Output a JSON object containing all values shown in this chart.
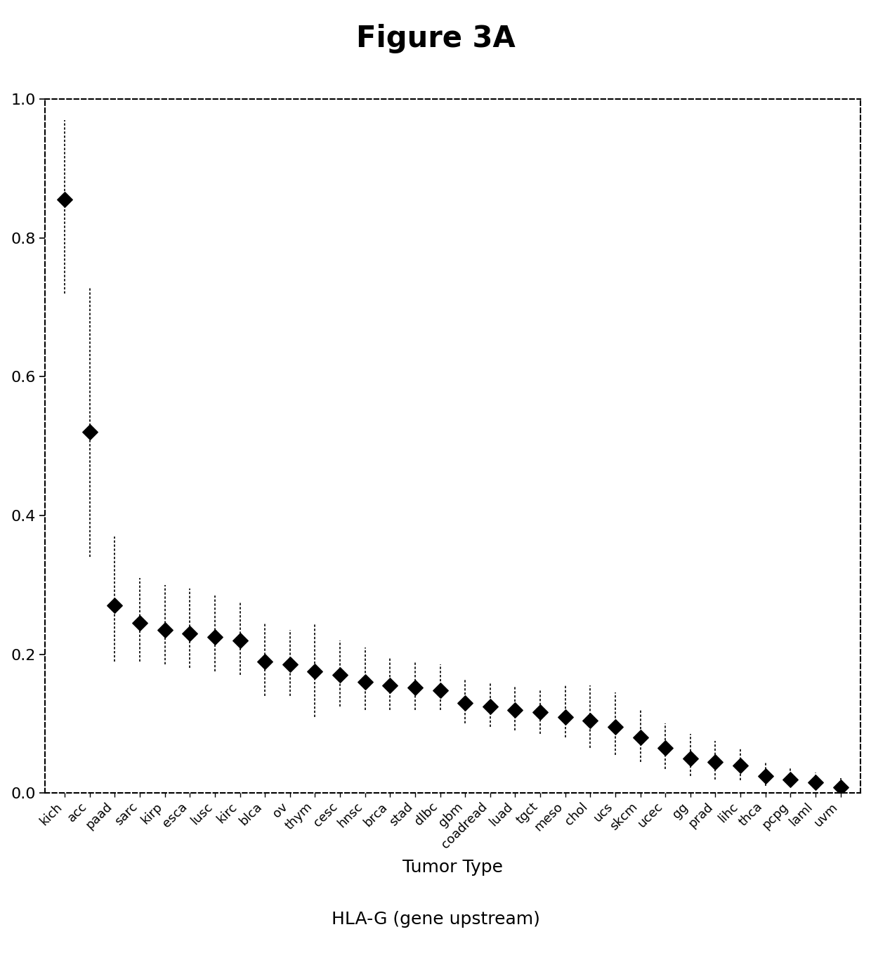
{
  "title": "Figure 3A",
  "xlabel": "Tumor Type",
  "ylabel": "",
  "subtitle": "HLA-G (gene upstream)",
  "categories": [
    "kich",
    "acc",
    "paad",
    "sarc",
    "kirp",
    "esca",
    "lusc",
    "kirc",
    "blca",
    "ov",
    "thym",
    "cesc",
    "hnsc",
    "brca",
    "stad",
    "dlbc",
    "gbm",
    "coadread",
    "luad",
    "tgct",
    "meso",
    "chol",
    "ucs",
    "skcm",
    "ucec",
    "gg",
    "prad",
    "lihc",
    "thca",
    "pcpg",
    "laml",
    "uvm"
  ],
  "means": [
    0.855,
    0.52,
    0.27,
    0.245,
    0.235,
    0.23,
    0.225,
    0.22,
    0.19,
    0.185,
    0.175,
    0.17,
    0.16,
    0.155,
    0.152,
    0.148,
    0.13,
    0.125,
    0.12,
    0.117,
    0.11,
    0.105,
    0.095,
    0.08,
    0.065,
    0.05,
    0.045,
    0.04,
    0.025,
    0.02,
    0.015,
    0.008
  ],
  "ci_lower": [
    0.72,
    0.34,
    0.19,
    0.19,
    0.185,
    0.18,
    0.175,
    0.17,
    0.14,
    0.14,
    0.11,
    0.125,
    0.12,
    0.12,
    0.12,
    0.12,
    0.1,
    0.095,
    0.09,
    0.085,
    0.08,
    0.065,
    0.055,
    0.045,
    0.035,
    0.025,
    0.02,
    0.018,
    0.01,
    0.008,
    0.005,
    0.001
  ],
  "ci_upper": [
    0.97,
    0.73,
    0.37,
    0.31,
    0.3,
    0.295,
    0.285,
    0.275,
    0.245,
    0.235,
    0.245,
    0.22,
    0.21,
    0.195,
    0.19,
    0.185,
    0.165,
    0.16,
    0.155,
    0.15,
    0.155,
    0.155,
    0.145,
    0.12,
    0.1,
    0.085,
    0.075,
    0.065,
    0.045,
    0.038,
    0.03,
    0.022
  ],
  "ylim": [
    0.0,
    1.0
  ],
  "yticks": [
    0.0,
    0.2,
    0.4,
    0.6,
    0.8,
    1.0
  ],
  "background_color": "#ffffff",
  "dot_color": "#000000",
  "title_fontsize": 30,
  "tick_fontsize": 16,
  "xlabel_fontsize": 18,
  "subtitle_fontsize": 18
}
